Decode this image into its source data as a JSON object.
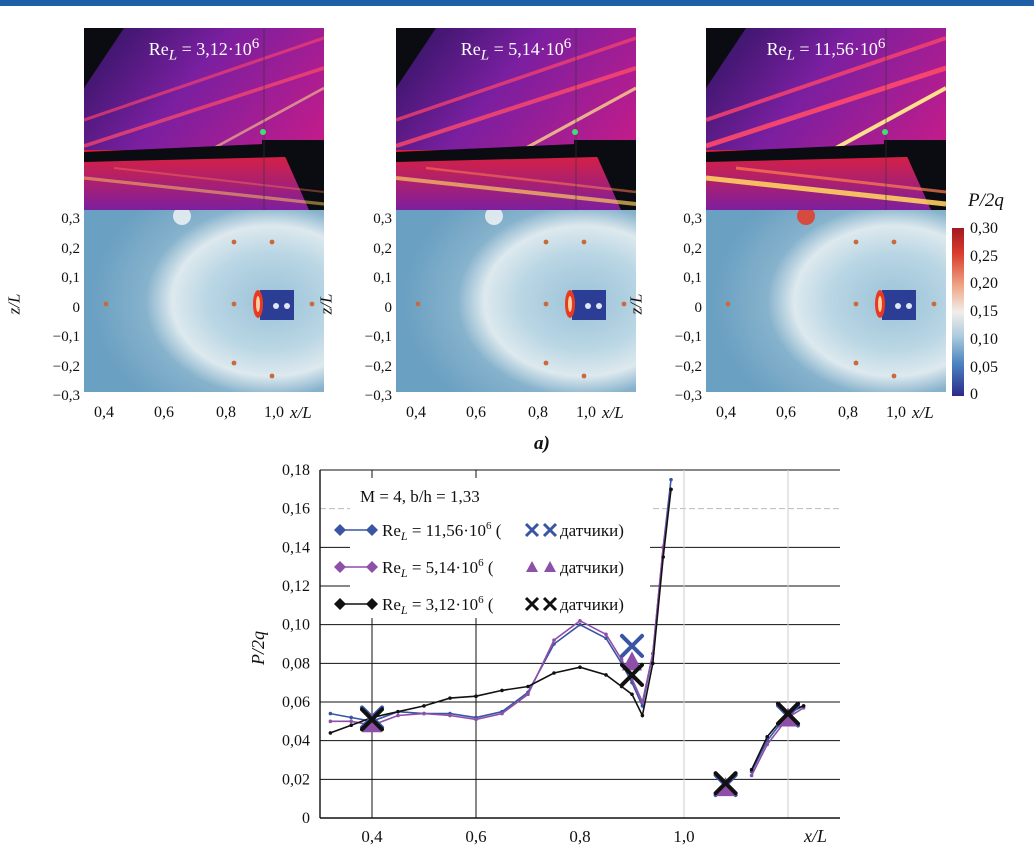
{
  "figure_top": {
    "panel_labels": [
      "Re_L = 3,12·10^6",
      "Re_L = 5,14·10^6",
      "Re_L = 11,56·10^6"
    ],
    "panels": [
      {
        "re_prefix": "Re",
        "re_sub": "L",
        "re_value": " = 3,12·10",
        "re_exp": "6"
      },
      {
        "re_prefix": "Re",
        "re_sub": "L",
        "re_value": " = 5,14·10",
        "re_exp": "6"
      },
      {
        "re_prefix": "Re",
        "re_sub": "L",
        "re_value": " = 11,56·10",
        "re_exp": "6"
      }
    ],
    "y_ticks": [
      "0,3",
      "0,2",
      "0,1",
      "0",
      "−0,1",
      "−0,2",
      "−0,3"
    ],
    "x_ticks": [
      "0,4",
      "0,6",
      "0,8",
      "1,0"
    ],
    "y_axis_label": "z/L",
    "x_axis_label": "x/L",
    "colorbar_title": "P/2q",
    "colorbar_ticks": [
      "0,30",
      "0,25",
      "0,20",
      "0,15",
      "0,10",
      "0,05",
      "0"
    ],
    "caption": "a)"
  },
  "chart_data": {
    "type": "line",
    "annotation": "M = 4, b/h = 1,33",
    "xlabel": "x/L",
    "ylabel": "P/2q",
    "xlim": [
      0.3,
      1.3
    ],
    "ylim": [
      0,
      0.18
    ],
    "x_ticks": [
      "0,4",
      "0,6",
      "0,8",
      "1,0"
    ],
    "y_ticks": [
      "0",
      "0,02",
      "0,04",
      "0,06",
      "0,08",
      "0,10",
      "0,12",
      "0,14",
      "0,16",
      "0,18"
    ],
    "grid": true,
    "series": [
      {
        "name": "Re_L = 11,56·10^6",
        "legend_text": "Re",
        "legend_sub": "L",
        "legend_value": " = 11,56·10",
        "legend_exp": "6",
        "sensor_text": "датчики)",
        "color": "#3a55a4",
        "x": [
          0.32,
          0.36,
          0.4,
          0.45,
          0.5,
          0.55,
          0.6,
          0.65,
          0.7,
          0.75,
          0.8,
          0.85,
          0.88,
          0.9,
          0.92,
          0.94,
          0.96,
          0.975,
          1.13,
          1.16,
          1.2,
          1.23
        ],
        "y": [
          0.054,
          0.052,
          0.05,
          0.055,
          0.054,
          0.054,
          0.052,
          0.055,
          0.065,
          0.09,
          0.1,
          0.093,
          0.08,
          0.07,
          0.058,
          0.085,
          0.14,
          0.175,
          0.024,
          0.04,
          0.054,
          0.058
        ]
      },
      {
        "name": "Re_L = 5,14·10^6",
        "legend_text": "Re",
        "legend_sub": "L",
        "legend_value": " = 5,14·10",
        "legend_exp": "6",
        "sensor_text": "датчики)",
        "color": "#8e4fa8",
        "x": [
          0.32,
          0.36,
          0.4,
          0.45,
          0.5,
          0.55,
          0.6,
          0.65,
          0.7,
          0.75,
          0.8,
          0.85,
          0.88,
          0.9,
          0.92,
          0.94,
          0.96,
          0.975,
          1.13,
          1.16,
          1.2,
          1.23
        ],
        "y": [
          0.05,
          0.05,
          0.048,
          0.053,
          0.054,
          0.053,
          0.051,
          0.054,
          0.064,
          0.092,
          0.102,
          0.095,
          0.082,
          0.072,
          0.06,
          0.085,
          0.14,
          0.17,
          0.022,
          0.038,
          0.052,
          0.057
        ]
      },
      {
        "name": "Re_L = 3,12·10^6",
        "legend_text": "Re",
        "legend_sub": "L",
        "legend_value": " = 3,12·10",
        "legend_exp": "6",
        "sensor_text": "датчики)",
        "color": "#111111",
        "x": [
          0.32,
          0.36,
          0.4,
          0.45,
          0.5,
          0.55,
          0.6,
          0.65,
          0.7,
          0.75,
          0.8,
          0.85,
          0.88,
          0.9,
          0.92,
          0.94,
          0.96,
          0.975,
          1.13,
          1.16,
          1.2,
          1.23
        ],
        "y": [
          0.044,
          0.048,
          0.052,
          0.055,
          0.058,
          0.062,
          0.063,
          0.066,
          0.068,
          0.075,
          0.078,
          0.074,
          0.068,
          0.064,
          0.053,
          0.08,
          0.135,
          0.17,
          0.025,
          0.042,
          0.055,
          0.058
        ]
      }
    ],
    "sensors": [
      {
        "name": "Re_L = 11,56·10^6",
        "marker": "x",
        "color": "#3a55a4",
        "x": [
          0.4,
          0.9,
          1.08,
          1.2
        ],
        "y": [
          0.052,
          0.089,
          0.017,
          0.053
        ]
      },
      {
        "name": "Re_L = 5,14·10^6",
        "marker": "triangle",
        "color": "#8e4fa8",
        "x": [
          0.4,
          0.9,
          1.08,
          1.2
        ],
        "y": [
          0.049,
          0.081,
          0.016,
          0.052
        ]
      },
      {
        "name": "Re_L = 3,12·10^6",
        "marker": "x",
        "color": "#111111",
        "x": [
          0.4,
          0.9,
          1.08,
          1.2
        ],
        "y": [
          0.051,
          0.074,
          0.018,
          0.054
        ]
      }
    ]
  }
}
